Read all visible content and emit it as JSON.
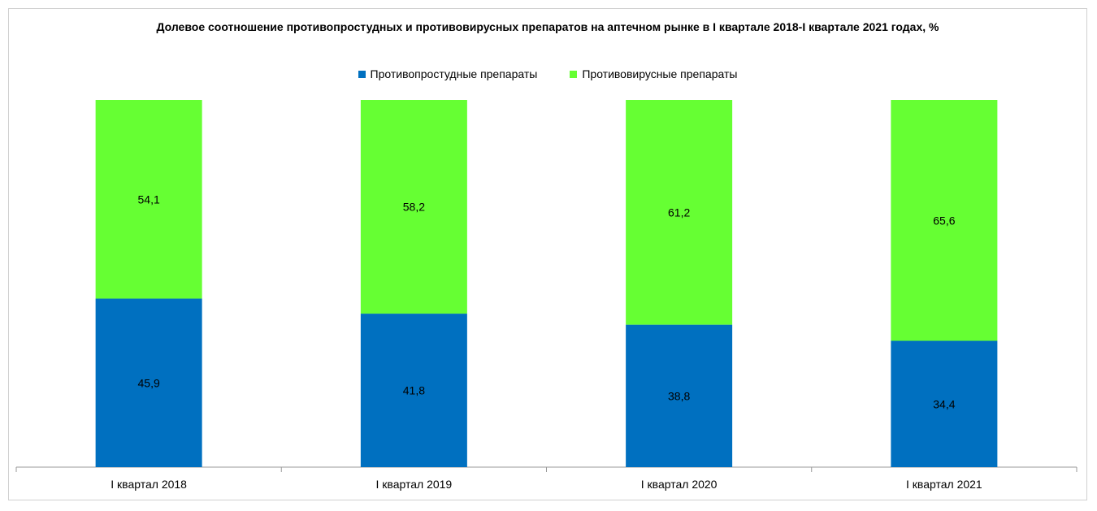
{
  "chart_data": {
    "type": "bar",
    "stacked": true,
    "title": "Долевое соотношение противопростудных и  противовирусных препаратов на аптечном рынке в I квартале 2018-I квартале 2021 годах, %",
    "categories": [
      "I квартал 2018",
      "I квартал 2019",
      "I квартал 2020",
      "I квартал 2021"
    ],
    "series": [
      {
        "name": "Противопростудные препараты",
        "color": "#0070C0",
        "values": [
          45.9,
          41.8,
          38.8,
          34.4
        ],
        "labels": [
          "45,9",
          "41,8",
          "38,8",
          "34,4"
        ]
      },
      {
        "name": "Противовирусные препараты",
        "color": "#66FF33",
        "values": [
          54.1,
          58.2,
          61.2,
          65.6
        ],
        "labels": [
          "54,1",
          "58,2",
          "61,2",
          "65,6"
        ]
      }
    ],
    "ylim": [
      0,
      100
    ],
    "legend_position": "top",
    "grid": false
  }
}
